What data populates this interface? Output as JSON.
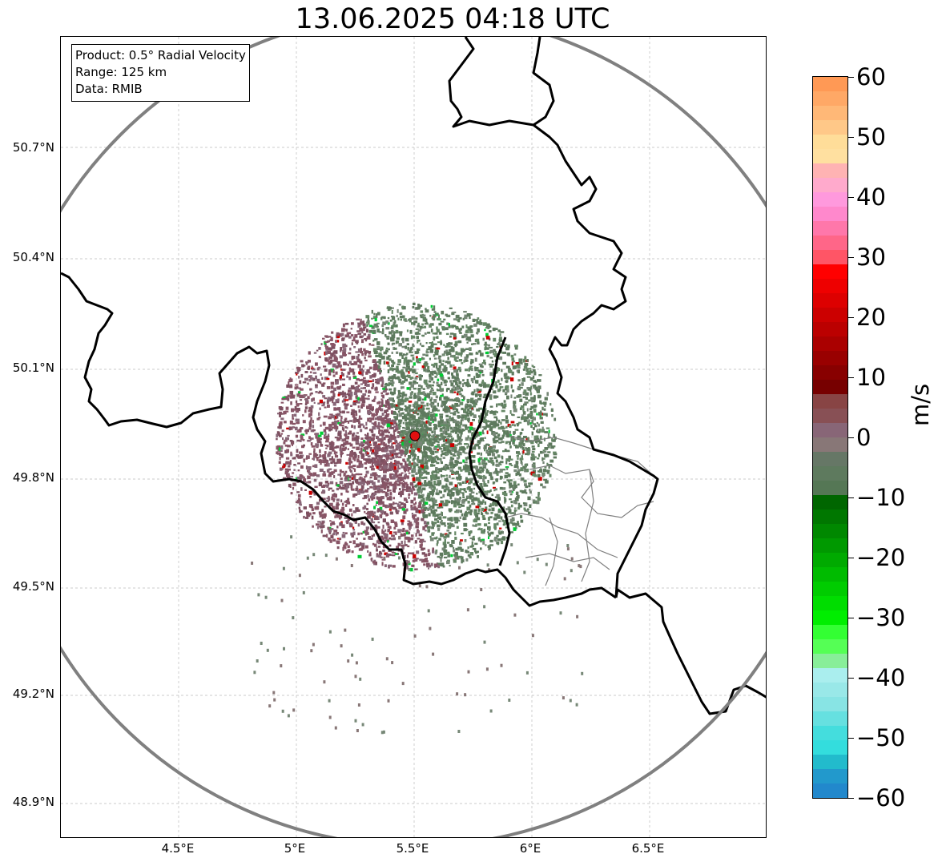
{
  "title": "13.06.2025 04:18 UTC",
  "info": {
    "product": "Product: 0.5° Radial Velocity",
    "range": "Range: 125 km",
    "source": "Data: RMIB"
  },
  "map": {
    "y_ticks": [
      "50.7°N",
      "50.4°N",
      "50.1°N",
      "49.8°N",
      "49.5°N",
      "49.2°N",
      "48.9°N"
    ],
    "x_ticks": [
      "4.5°E",
      "5°E",
      "5.5°E",
      "6°E",
      "6.5°E"
    ],
    "radar_site": {
      "lon": 5.505,
      "lat": 49.914
    },
    "range_ring_color": "#808080",
    "border_color": "#000000",
    "province_color": "#808080"
  },
  "colorbar": {
    "unit": "m/s",
    "ticks": [
      "60",
      "50",
      "40",
      "30",
      "20",
      "10",
      "0",
      "−10",
      "−20",
      "−30",
      "−40",
      "−50",
      "−60"
    ],
    "min": -60,
    "max": 60,
    "colors": [
      "#ff9955",
      "#ffa866",
      "#ffb877",
      "#ffc888",
      "#ffdd99",
      "#ffe0a0",
      "#ffb3b3",
      "#ffaacc",
      "#ff99dd",
      "#ff88cc",
      "#ff77aa",
      "#ff6688",
      "#ff5566",
      "#ff0000",
      "#ee0000",
      "#dd0000",
      "#cc0000",
      "#bb0000",
      "#aa0000",
      "#990000",
      "#880000",
      "#770000",
      "#884444",
      "#885055",
      "#886677",
      "#887777",
      "#667766",
      "#5e7a5e",
      "#557755",
      "#006600",
      "#007700",
      "#008800",
      "#009900",
      "#00aa00",
      "#00bb00",
      "#00cc00",
      "#00dd00",
      "#00ee00",
      "#33ff33",
      "#55ff55",
      "#88ee99",
      "#aaeeee",
      "#99e8e8",
      "#88e4e4",
      "#66e0e0",
      "#44dddd",
      "#33dddd",
      "#22bbcc",
      "#2299cc",
      "#2288cc"
    ]
  }
}
